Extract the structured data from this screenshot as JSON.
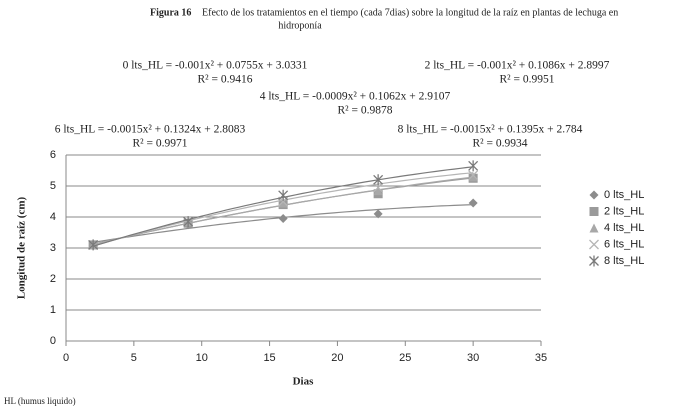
{
  "chart_data": {
    "type": "scatter",
    "figure_label": "Figura 16",
    "title": "Efecto de los tratamientos  en el tiempo (cada 7dias) sobre la longitud de la raíz  en plantas de lechuga en",
    "title_line2": "hidroponía",
    "xlabel": "Dias",
    "ylabel": "Longitud de raíz (cm)",
    "footnote": "HL  (humus liquido)",
    "x": [
      2,
      9,
      16,
      23,
      30
    ],
    "xlim": [
      0,
      35
    ],
    "xticks": [
      0,
      5,
      10,
      15,
      20,
      25,
      30,
      35
    ],
    "ylim": [
      0,
      6
    ],
    "yticks": [
      0,
      1,
      2,
      3,
      4,
      5,
      6
    ],
    "grid": true,
    "legend": "right",
    "series": [
      {
        "name": "0 lts_HL",
        "color": "#8c8c8c",
        "marker": "diamond",
        "values": [
          3.08,
          3.75,
          3.95,
          4.1,
          4.45
        ],
        "trend": [
          -0.001,
          0.0755,
          3.0331
        ],
        "equation": "0 lts_HL = -0.001x² + 0.0755x + 3.0331",
        "r2": "R² = 0.9416"
      },
      {
        "name": "2 lts_HL",
        "color": "#9a9a9a",
        "marker": "square",
        "values": [
          3.1,
          3.8,
          4.4,
          4.75,
          5.25
        ],
        "trend": [
          -0.001,
          0.1086,
          2.8997
        ],
        "equation": "2 lts_HL = -0.001x² + 0.1086x + 2.8997",
        "r2": "R² = 0.9951"
      },
      {
        "name": "4 lts_HL",
        "color": "#a8a8a8",
        "marker": "triangle",
        "values": [
          3.1,
          3.85,
          4.45,
          4.85,
          5.3
        ],
        "trend": [
          -0.0009,
          0.1062,
          2.9107
        ],
        "equation": "4 lts_HL = -0.0009x² + 0.1062x + 2.9107",
        "r2": "R² = 0.9878"
      },
      {
        "name": "6 lts_HL",
        "color": "#b5b5b5",
        "marker": "x",
        "values": [
          3.1,
          3.85,
          4.5,
          4.95,
          5.35
        ],
        "trend": [
          -0.0015,
          0.1324,
          2.8083
        ],
        "equation": "6 lts_HL = -0.0015x² + 0.1324x + 2.8083",
        "r2": "R² = 0.9971"
      },
      {
        "name": "8 lts_HL",
        "color": "#7a7a7a",
        "marker": "star",
        "values": [
          3.1,
          3.85,
          4.7,
          5.2,
          5.65
        ],
        "trend": [
          -0.0015,
          0.1395,
          2.784
        ],
        "equation": "8 lts_HL = -0.0015x² + 0.1395x + 2.784",
        "r2": "R² = 0.9934"
      }
    ]
  }
}
